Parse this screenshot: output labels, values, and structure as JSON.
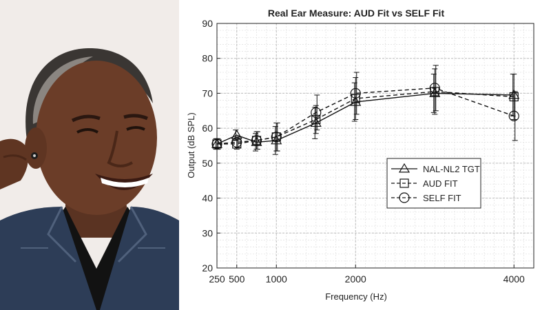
{
  "photo": {
    "subject": "smiling man wearing an in-ear hearing aid",
    "background_color": "#f1ece9"
  },
  "chart_data": {
    "type": "line",
    "title": "Real Ear Measure: AUD Fit vs SELF Fit",
    "xlabel": "Frequency (Hz)",
    "ylabel": "Output (dB SPL)",
    "x_tick_labels": [
      "250",
      "500",
      "1000",
      "2000",
      "4000"
    ],
    "x_tick_values": [
      250,
      500,
      1000,
      2000,
      4000
    ],
    "y_ticks": [
      20,
      30,
      40,
      50,
      60,
      70,
      80,
      90
    ],
    "xlim": [
      250,
      4250
    ],
    "ylim": [
      20,
      90
    ],
    "grid": true,
    "legend_position": "lower-right",
    "x": [
      250,
      500,
      750,
      1000,
      1500,
      2000,
      3000,
      4000
    ],
    "series": [
      {
        "name": "NAL-NL2 TGT",
        "line_style": "solid",
        "marker": "triangle",
        "values": [
          55.5,
          58,
          56,
          56.5,
          61.5,
          67.5,
          70,
          69.5
        ],
        "err": [
          1.5,
          1.5,
          2.5,
          4,
          4.5,
          5.5,
          5.5,
          6
        ]
      },
      {
        "name": "AUD FIT",
        "line_style": "dashed",
        "marker": "square",
        "values": [
          55.5,
          55.5,
          56.5,
          57.5,
          62.5,
          68.5,
          70.5,
          69
        ],
        "err": [
          1.5,
          1.5,
          2.5,
          4,
          4,
          6,
          6.5,
          6.5
        ]
      },
      {
        "name": "SELF FIT",
        "line_style": "dashed",
        "marker": "circle",
        "values": [
          55.5,
          56,
          56.5,
          57.5,
          64.5,
          70,
          71.5,
          63.5
        ],
        "err": [
          1.5,
          1.5,
          2.5,
          4,
          5,
          6,
          6.5,
          7
        ]
      }
    ]
  }
}
